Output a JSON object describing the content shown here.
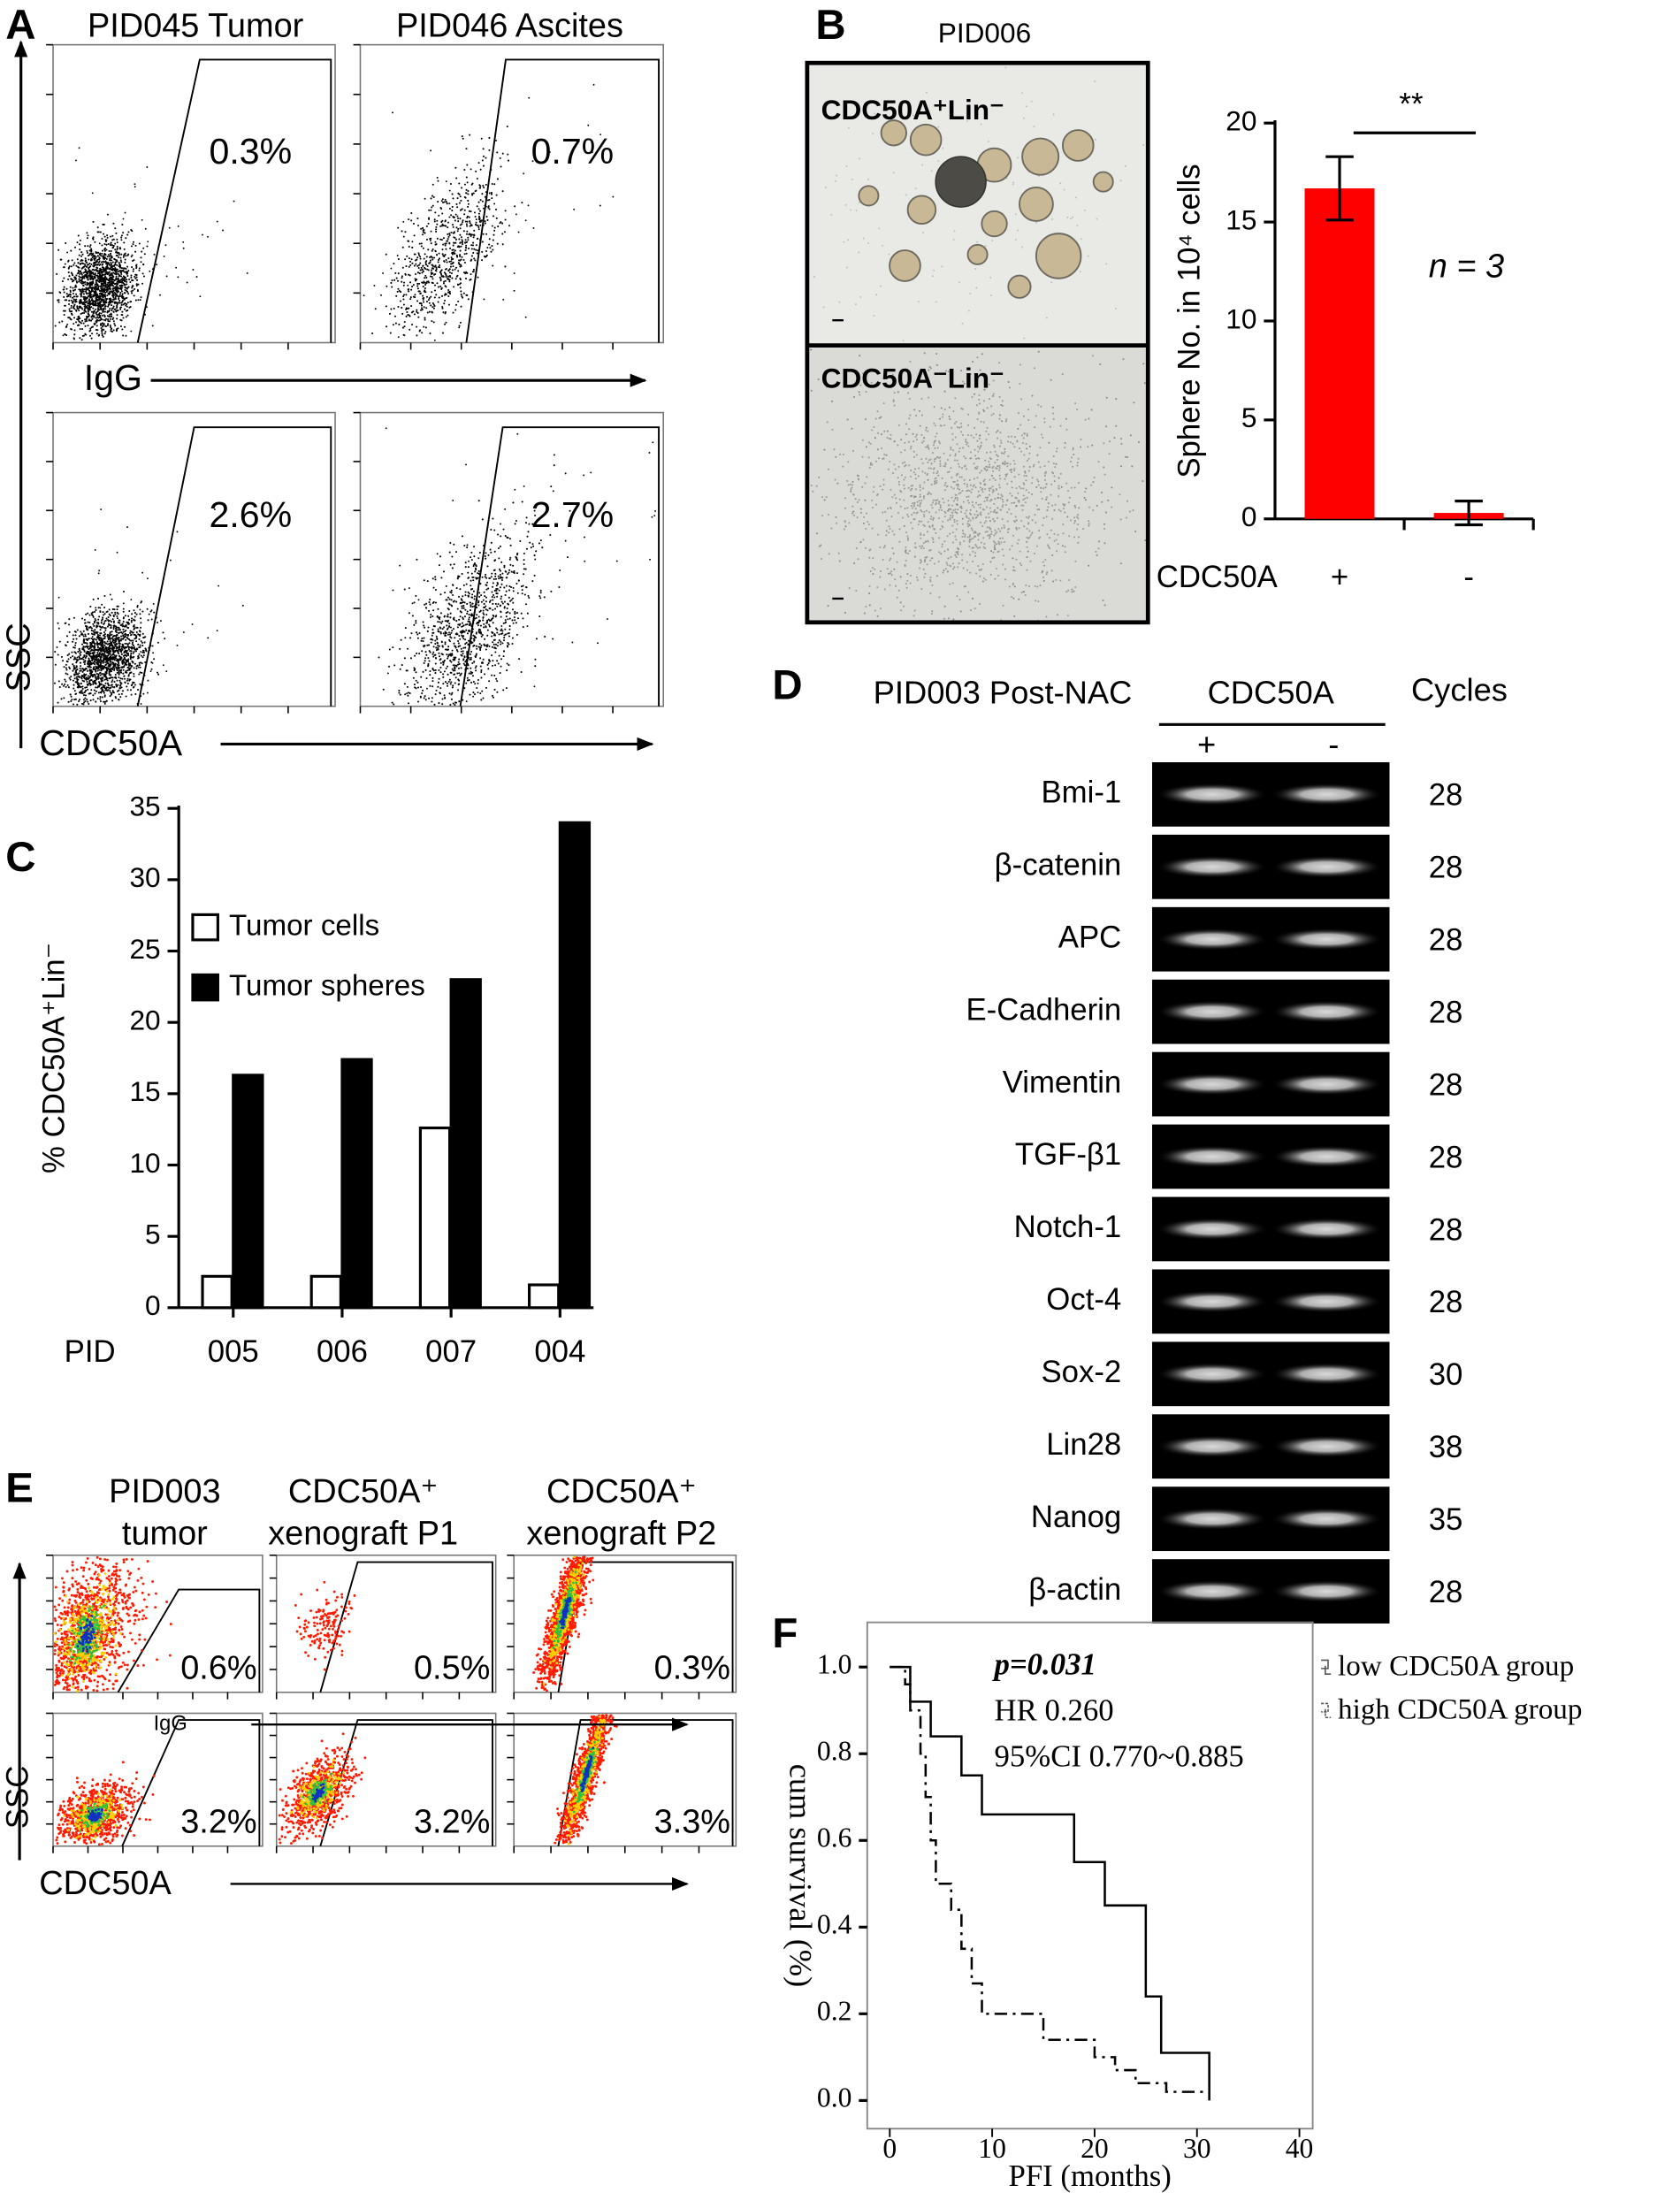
{
  "panel_a": {
    "letter": "A",
    "columns": [
      "PID045 Tumor",
      "PID046 Ascites"
    ],
    "percentages": [
      [
        "0.3%",
        "0.7%"
      ],
      [
        "2.6%",
        "2.7%"
      ]
    ],
    "x_labels": [
      "IgG",
      "CDC50A"
    ],
    "y_label": "SSC"
  },
  "panel_b": {
    "letter": "B",
    "title": "PID006",
    "images": [
      "CDC50A⁺Lin⁻",
      "CDC50A⁻Lin⁻"
    ]
  },
  "panel_d": {
    "letter": "D",
    "sample": "PID003 Post-NAC",
    "marker": "CDC50A",
    "lanes": [
      "+",
      "-"
    ],
    "cycles_header": "Cycles",
    "rows": [
      {
        "gene": "Bmi-1",
        "cycles": 28
      },
      {
        "gene": "β-catenin",
        "cycles": 28
      },
      {
        "gene": "APC",
        "cycles": 28
      },
      {
        "gene": "E-Cadherin",
        "cycles": 28
      },
      {
        "gene": "Vimentin",
        "cycles": 28
      },
      {
        "gene": "TGF-β1",
        "cycles": 28
      },
      {
        "gene": "Notch-1",
        "cycles": 28
      },
      {
        "gene": "Oct-4",
        "cycles": 28
      },
      {
        "gene": "Sox-2",
        "cycles": 30
      },
      {
        "gene": "Lin28",
        "cycles": 38
      },
      {
        "gene": "Nanog",
        "cycles": 35
      },
      {
        "gene": "β-actin",
        "cycles": 28
      }
    ]
  },
  "panel_e": {
    "letter": "E",
    "columns": [
      [
        "PID003",
        "tumor"
      ],
      [
        "CDC50A⁺",
        "xenograft  P1"
      ],
      [
        "CDC50A⁺",
        "xenograft  P2"
      ]
    ],
    "percentages": [
      [
        "0.6%",
        "0.5%",
        "0.3%"
      ],
      [
        "3.2%",
        "3.2%",
        "3.3%"
      ]
    ],
    "x_labels": [
      "IgG",
      "CDC50A"
    ],
    "y_label": "SSC"
  },
  "chart_data": [
    {
      "type": "bar",
      "ylabel": "Sphere No. in 10⁴ cells",
      "xlabel": "CDC50A",
      "categories": [
        "+",
        "-"
      ],
      "values": [
        16.7,
        0.3
      ],
      "errors": [
        1.6,
        0.6
      ],
      "color": "#ff0000",
      "ylim": [
        0,
        20
      ],
      "yticks": [
        0,
        5,
        10,
        15,
        20
      ],
      "annotations": [
        "**",
        "n = 3"
      ]
    },
    {
      "type": "grouped_bar",
      "panel": "C",
      "ylabel": "% CDC50A⁺Lin⁻",
      "xlabel": "PID",
      "categories": [
        "005",
        "006",
        "007",
        "004"
      ],
      "series": [
        {
          "name": "Tumor cells",
          "color": "#ffffff",
          "values": [
            2.2,
            2.2,
            12.6,
            1.6
          ]
        },
        {
          "name": "Tumor spheres",
          "color": "#000000",
          "values": [
            16.3,
            17.4,
            23.0,
            34.0
          ]
        }
      ],
      "ylim": [
        0,
        35
      ],
      "yticks": [
        0,
        5,
        10,
        15,
        20,
        25,
        30,
        35
      ],
      "legend": "upper left"
    },
    {
      "type": "line",
      "panel": "F",
      "xlabel": "PFI (months)",
      "ylabel": "cum survival (%)",
      "series": [
        {
          "name": "low CDC50A group",
          "color": "#000000",
          "dash": "solid",
          "x": [
            0,
            2,
            2,
            4,
            4,
            7,
            7,
            9,
            9,
            18,
            18,
            21,
            21,
            25,
            25,
            26.5,
            26.5,
            31.2,
            31.2
          ],
          "values": [
            1,
            1,
            0.92,
            0.92,
            0.84,
            0.84,
            0.75,
            0.75,
            0.66,
            0.66,
            0.55,
            0.55,
            0.45,
            0.45,
            0.24,
            0.24,
            0.11,
            0.11,
            0
          ]
        },
        {
          "name": "high CDC50A group",
          "color": "#000000",
          "dash": "dashdot",
          "x": [
            0,
            1.5,
            1.5,
            2,
            2,
            3,
            3,
            3.5,
            3.5,
            4,
            4,
            4.5,
            4.5,
            6,
            6,
            7,
            7,
            8,
            8,
            9,
            9,
            15,
            15,
            20,
            20,
            22,
            22,
            24,
            24,
            27,
            27,
            31.2
          ],
          "values": [
            1,
            1,
            0.96,
            0.96,
            0.9,
            0.9,
            0.8,
            0.8,
            0.7,
            0.7,
            0.6,
            0.6,
            0.5,
            0.5,
            0.44,
            0.44,
            0.35,
            0.35,
            0.27,
            0.27,
            0.2,
            0.2,
            0.14,
            0.14,
            0.1,
            0.1,
            0.07,
            0.07,
            0.04,
            0.04,
            0.02,
            0.02
          ]
        }
      ],
      "xlim": [
        -2.2,
        41.3
      ],
      "ylim": [
        -0.065,
        1.103
      ],
      "xticks": [
        0,
        10,
        20,
        30,
        40
      ],
      "yticks": [
        {
          "value": 0,
          "label": "0.0"
        },
        0.2,
        0.4,
        0.6,
        0.8,
        {
          "value": 1,
          "label": "1.0"
        }
      ],
      "annotations": [
        "p=0.031",
        "HR 0.260",
        "95%CI 0.770~0.885"
      ],
      "legend": "outside right"
    }
  ]
}
